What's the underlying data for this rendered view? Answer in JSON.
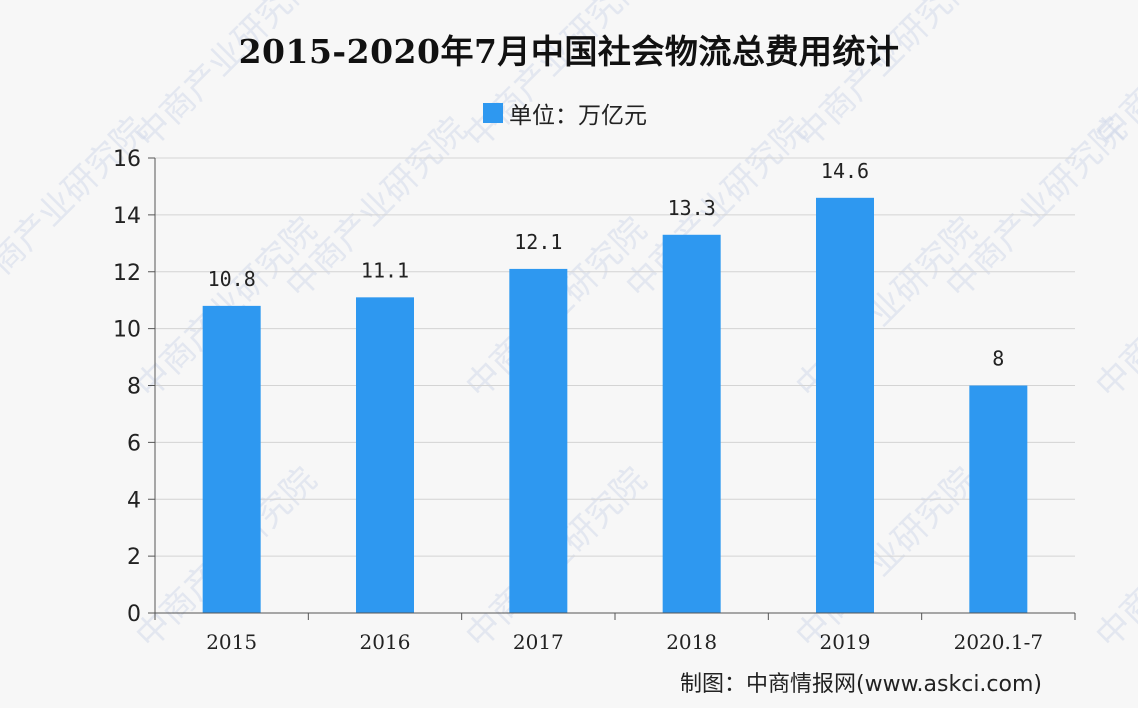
{
  "chart_data": {
    "type": "bar",
    "title": "2015-2020年7月中国社会物流总费用统计",
    "legend": {
      "label": "单位：万亿元",
      "position": "top"
    },
    "categories": [
      "2015",
      "2016",
      "2017",
      "2018",
      "2019",
      "2020.1-7"
    ],
    "series": [
      {
        "values": [
          10.8,
          11.1,
          12.1,
          13.3,
          14.6,
          8
        ]
      }
    ],
    "data_labels": [
      "10.8",
      "11.1",
      "12.1",
      "13.3",
      "14.6",
      "8"
    ],
    "y_ticks": [
      0,
      2,
      4,
      6,
      8,
      10,
      12,
      14,
      16
    ],
    "ylim": [
      0,
      16
    ],
    "grid": true,
    "bar_color": "#2e98f0"
  },
  "credit": "制图：中商情报网(www.askci.com)",
  "watermark": "中商产业研究院"
}
